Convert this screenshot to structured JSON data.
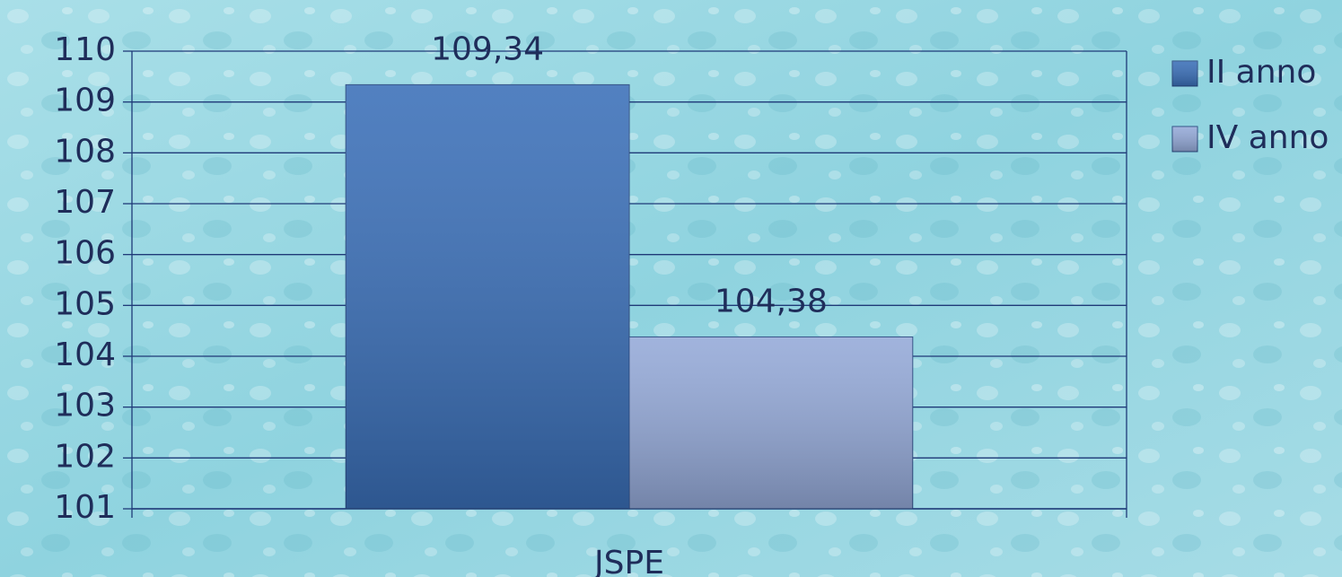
{
  "chart_data": {
    "type": "bar",
    "categories": [
      "JSPE"
    ],
    "series": [
      {
        "name": "II anno",
        "color": "#3a6fb8",
        "values": [
          109.34
        ],
        "value_labels": [
          "109,34"
        ]
      },
      {
        "name": "IV anno",
        "color": "#94a9d8",
        "values": [
          104.38
        ],
        "value_labels": [
          "104,38"
        ]
      }
    ],
    "ylim": [
      101,
      110
    ],
    "yticks": [
      101,
      102,
      103,
      104,
      105,
      106,
      107,
      108,
      109,
      110
    ],
    "grid": true,
    "legend": "right"
  }
}
